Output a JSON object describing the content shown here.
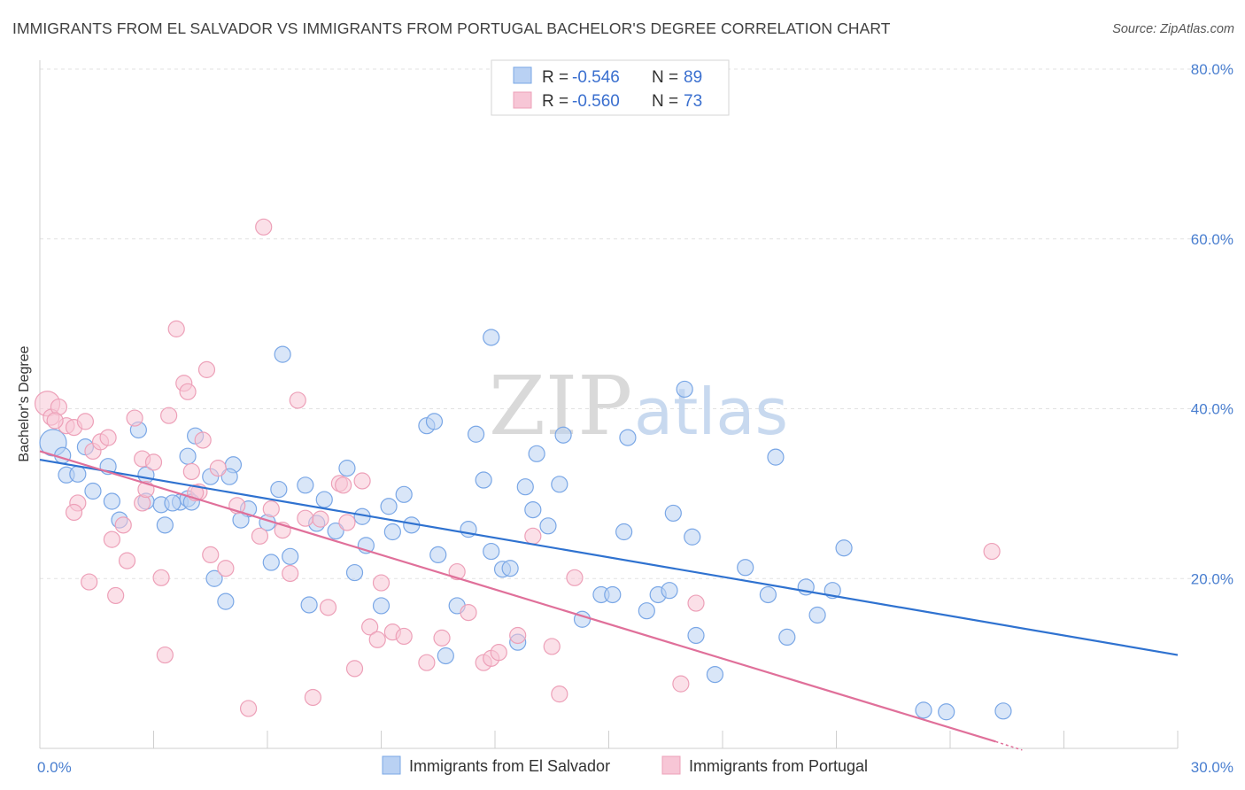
{
  "title": "IMMIGRANTS FROM EL SALVADOR VS IMMIGRANTS FROM PORTUGAL BACHELOR'S DEGREE CORRELATION CHART",
  "source": "Source: ZipAtlas.com",
  "watermark": {
    "zip": "ZIP",
    "atlas": "atlas"
  },
  "legend": {
    "r_label": "R = ",
    "n_label": "N = ",
    "rows": [
      {
        "r": "-0.546",
        "n": "89"
      },
      {
        "r": "-0.560",
        "n": "73"
      }
    ]
  },
  "chart_data": {
    "type": "scatter",
    "title": "IMMIGRANTS FROM EL SALVADOR VS IMMIGRANTS FROM PORTUGAL BACHELOR'S DEGREE CORRELATION CHART",
    "xlabel": "",
    "ylabel": "Bachelor's Degree",
    "xlim": [
      0,
      30
    ],
    "ylim": [
      0,
      80
    ],
    "x_tick_labels": [
      {
        "value": 0,
        "label": "0.0%"
      },
      {
        "value": 30,
        "label": "30.0%"
      }
    ],
    "y_tick_labels": [
      {
        "value": 20,
        "label": "20.0%"
      },
      {
        "value": 40,
        "label": "40.0%"
      },
      {
        "value": 60,
        "label": "60.0%"
      },
      {
        "value": 80,
        "label": "80.0%"
      }
    ],
    "grid": "horizontal dashed",
    "legend_position": "top-center",
    "series": [
      {
        "name": "Immigrants from El Salvador",
        "color": "#7aa7e6",
        "fill": "#b9d1f3",
        "trend_color": "#2f72d0",
        "trend": {
          "x": [
            0,
            30
          ],
          "y": [
            34.0,
            11.0
          ]
        },
        "points": [
          [
            0.35,
            36.0
          ],
          [
            0.6,
            34.5
          ],
          [
            0.7,
            32.2
          ],
          [
            1.0,
            32.3
          ],
          [
            1.2,
            35.5
          ],
          [
            1.4,
            30.3
          ],
          [
            1.9,
            29.1
          ],
          [
            1.8,
            33.2
          ],
          [
            2.6,
            37.5
          ],
          [
            2.8,
            32.2
          ],
          [
            3.2,
            28.7
          ],
          [
            3.7,
            29.0
          ],
          [
            3.9,
            34.4
          ],
          [
            4.1,
            36.8
          ],
          [
            4.5,
            32.0
          ],
          [
            5.1,
            33.4
          ],
          [
            5.0,
            32.0
          ],
          [
            2.1,
            26.9
          ],
          [
            3.3,
            26.3
          ],
          [
            4.6,
            20.0
          ],
          [
            4.9,
            17.3
          ],
          [
            5.5,
            28.2
          ],
          [
            6.0,
            26.6
          ],
          [
            6.1,
            21.9
          ],
          [
            6.6,
            22.6
          ],
          [
            6.3,
            30.5
          ],
          [
            7.0,
            31.0
          ],
          [
            7.3,
            26.5
          ],
          [
            7.1,
            16.9
          ],
          [
            7.5,
            29.3
          ],
          [
            8.1,
            33.0
          ],
          [
            7.8,
            25.6
          ],
          [
            8.3,
            20.7
          ],
          [
            8.5,
            27.3
          ],
          [
            8.6,
            23.9
          ],
          [
            9.0,
            16.8
          ],
          [
            9.2,
            28.5
          ],
          [
            9.3,
            25.5
          ],
          [
            9.6,
            29.9
          ],
          [
            9.8,
            26.3
          ],
          [
            10.2,
            38.0
          ],
          [
            10.4,
            38.5
          ],
          [
            10.5,
            22.8
          ],
          [
            10.7,
            10.9
          ],
          [
            11.0,
            16.8
          ],
          [
            11.3,
            25.8
          ],
          [
            11.5,
            37.0
          ],
          [
            11.7,
            31.6
          ],
          [
            11.9,
            23.2
          ],
          [
            12.2,
            21.1
          ],
          [
            12.4,
            21.2
          ],
          [
            12.6,
            12.5
          ],
          [
            12.8,
            30.8
          ],
          [
            13.0,
            28.1
          ],
          [
            13.1,
            34.7
          ],
          [
            13.4,
            26.2
          ],
          [
            13.7,
            31.1
          ],
          [
            13.8,
            36.9
          ],
          [
            14.3,
            15.2
          ],
          [
            14.8,
            18.1
          ],
          [
            15.1,
            18.1
          ],
          [
            15.5,
            36.6
          ],
          [
            15.4,
            25.5
          ],
          [
            16.0,
            16.2
          ],
          [
            16.3,
            18.1
          ],
          [
            16.6,
            18.6
          ],
          [
            16.7,
            27.7
          ],
          [
            17.0,
            42.3
          ],
          [
            17.3,
            13.3
          ],
          [
            17.2,
            24.9
          ],
          [
            17.8,
            8.7
          ],
          [
            18.6,
            21.3
          ],
          [
            19.2,
            18.1
          ],
          [
            19.4,
            34.3
          ],
          [
            19.7,
            13.1
          ],
          [
            20.2,
            19.0
          ],
          [
            20.5,
            15.7
          ],
          [
            20.9,
            18.6
          ],
          [
            21.2,
            23.6
          ],
          [
            23.3,
            4.5
          ],
          [
            23.9,
            4.3
          ],
          [
            25.4,
            4.4
          ],
          [
            6.4,
            46.4
          ],
          [
            11.9,
            48.4
          ],
          [
            2.8,
            29.1
          ],
          [
            3.5,
            28.9
          ],
          [
            3.9,
            29.4
          ],
          [
            4.0,
            29.0
          ],
          [
            5.3,
            26.9
          ]
        ]
      },
      {
        "name": "Immigrants from Portugal",
        "color": "#eda0b8",
        "fill": "#f7c6d6",
        "trend_color": "#e0709a",
        "trend": {
          "x": [
            0,
            25.2
          ],
          "y": [
            35.0,
            0.8
          ]
        },
        "dashed_extension": {
          "x": [
            25.2,
            25.9
          ],
          "y": [
            0.8,
            -0.2
          ]
        },
        "points": [
          [
            0.2,
            40.6
          ],
          [
            0.3,
            39.0
          ],
          [
            0.5,
            40.2
          ],
          [
            0.7,
            38.0
          ],
          [
            0.9,
            37.8
          ],
          [
            0.4,
            38.6
          ],
          [
            1.2,
            38.5
          ],
          [
            1.4,
            35.0
          ],
          [
            1.6,
            36.1
          ],
          [
            1.8,
            36.6
          ],
          [
            1.0,
            28.9
          ],
          [
            0.9,
            27.8
          ],
          [
            1.3,
            19.6
          ],
          [
            1.9,
            24.6
          ],
          [
            2.0,
            18.0
          ],
          [
            2.3,
            22.1
          ],
          [
            2.2,
            26.3
          ],
          [
            2.5,
            38.9
          ],
          [
            2.7,
            28.9
          ],
          [
            2.7,
            34.1
          ],
          [
            2.8,
            30.5
          ],
          [
            3.0,
            33.7
          ],
          [
            3.2,
            20.1
          ],
          [
            3.3,
            11.0
          ],
          [
            3.4,
            39.2
          ],
          [
            3.6,
            49.4
          ],
          [
            3.8,
            43.0
          ],
          [
            3.9,
            42.0
          ],
          [
            4.0,
            32.6
          ],
          [
            4.2,
            30.2
          ],
          [
            4.3,
            36.3
          ],
          [
            4.4,
            44.6
          ],
          [
            4.5,
            22.8
          ],
          [
            4.7,
            33.0
          ],
          [
            4.9,
            21.2
          ],
          [
            5.2,
            28.6
          ],
          [
            5.5,
            4.7
          ],
          [
            5.8,
            25.0
          ],
          [
            5.9,
            61.4
          ],
          [
            6.1,
            28.2
          ],
          [
            6.4,
            25.7
          ],
          [
            6.6,
            20.6
          ],
          [
            6.8,
            41.0
          ],
          [
            7.0,
            27.1
          ],
          [
            7.2,
            6.0
          ],
          [
            7.4,
            27.0
          ],
          [
            7.6,
            16.6
          ],
          [
            7.9,
            31.2
          ],
          [
            8.0,
            31.0
          ],
          [
            8.1,
            26.6
          ],
          [
            8.3,
            9.4
          ],
          [
            8.5,
            31.5
          ],
          [
            8.7,
            14.3
          ],
          [
            8.9,
            12.8
          ],
          [
            9.0,
            19.5
          ],
          [
            9.3,
            13.7
          ],
          [
            9.6,
            13.2
          ],
          [
            10.2,
            10.1
          ],
          [
            10.6,
            13.0
          ],
          [
            11.0,
            20.8
          ],
          [
            11.3,
            16.0
          ],
          [
            11.7,
            10.1
          ],
          [
            11.9,
            10.6
          ],
          [
            12.1,
            11.3
          ],
          [
            12.6,
            13.3
          ],
          [
            13.0,
            25.0
          ],
          [
            13.5,
            12.0
          ],
          [
            13.7,
            6.4
          ],
          [
            14.1,
            20.1
          ],
          [
            16.9,
            7.6
          ],
          [
            17.3,
            17.1
          ],
          [
            25.1,
            23.2
          ],
          [
            4.1,
            30.1
          ]
        ]
      }
    ]
  },
  "bottom_legend": [
    "Immigrants from El Salvador",
    "Immigrants from Portugal"
  ]
}
